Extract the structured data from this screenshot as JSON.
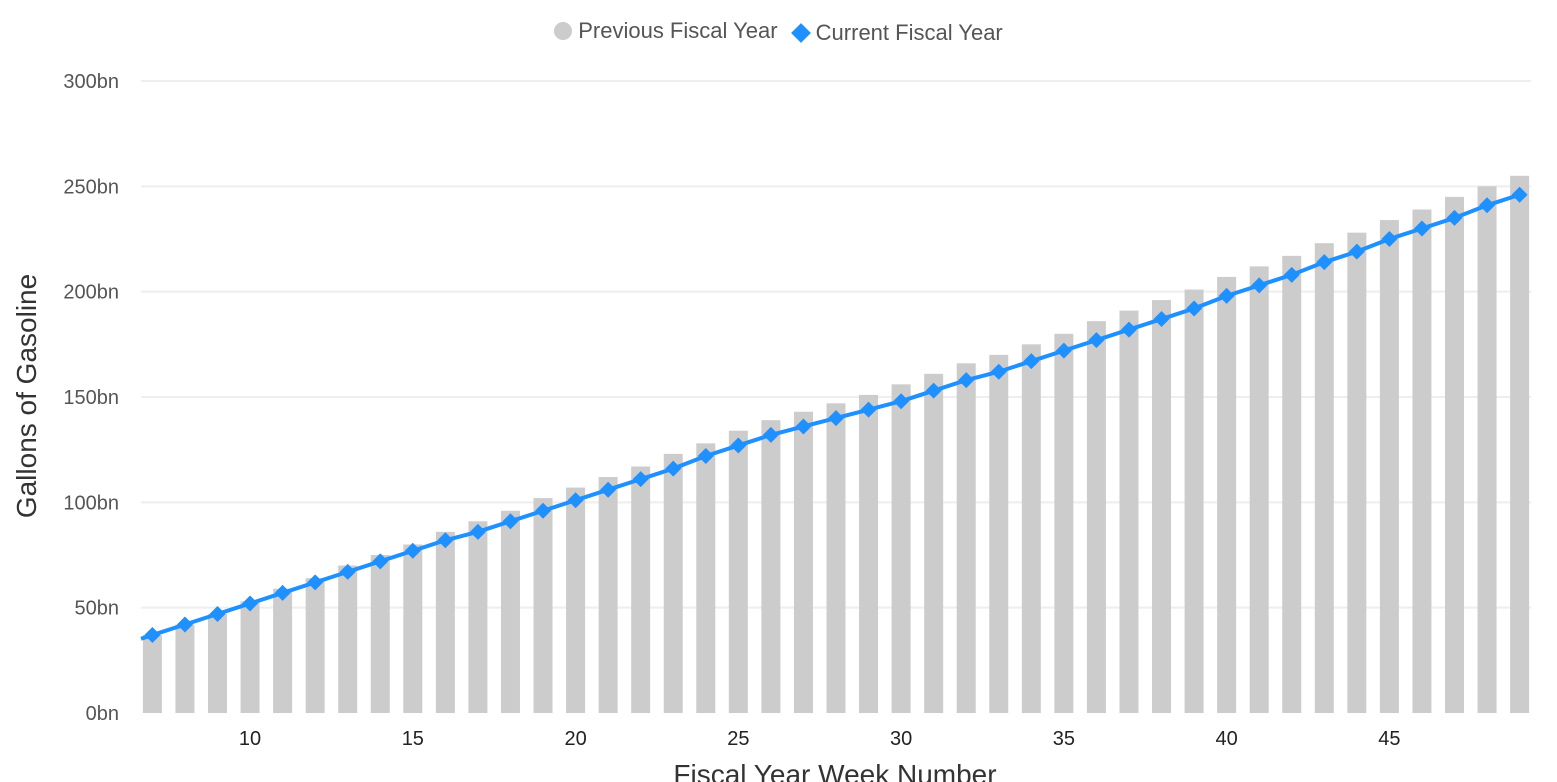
{
  "chart_data": {
    "type": "bar+line",
    "xlabel": "Fiscal Year Week Number",
    "ylabel": "Gallons of Gasoline",
    "x": [
      7,
      8,
      9,
      10,
      11,
      12,
      13,
      14,
      15,
      16,
      17,
      18,
      19,
      20,
      21,
      22,
      23,
      24,
      25,
      26,
      27,
      28,
      29,
      30,
      31,
      32,
      33,
      34,
      35,
      36,
      37,
      38,
      39,
      40,
      41,
      42,
      43,
      44,
      45,
      46,
      47,
      48,
      49
    ],
    "x_ticks": [
      10,
      15,
      20,
      25,
      30,
      35,
      40,
      45
    ],
    "xlim": [
      6.65,
      49.35
    ],
    "ylim": [
      0,
      300
    ],
    "y_ticks": [
      0,
      50,
      100,
      150,
      200,
      250,
      300
    ],
    "y_tick_labels": [
      "0bn",
      "50bn",
      "100bn",
      "150bn",
      "200bn",
      "250bn",
      "300bn"
    ],
    "grid": true,
    "legend_position": "top-center",
    "series": [
      {
        "name": "Previous Fiscal Year",
        "type": "bar",
        "color": "#cccccc",
        "values": [
          37,
          42,
          47,
          53,
          59,
          64,
          70,
          75,
          80,
          86,
          91,
          96,
          102,
          107,
          112,
          117,
          123,
          128,
          134,
          139,
          143,
          147,
          151,
          156,
          161,
          166,
          170,
          175,
          180,
          186,
          191,
          196,
          201,
          207,
          212,
          217,
          223,
          228,
          234,
          239,
          245,
          250,
          255
        ]
      },
      {
        "name": "Current Fiscal Year",
        "type": "line",
        "color": "#1e90ff",
        "values": [
          37,
          42,
          47,
          52,
          57,
          62,
          67,
          72,
          77,
          82,
          86,
          91,
          96,
          101,
          106,
          111,
          116,
          122,
          127,
          132,
          136,
          140,
          144,
          148,
          153,
          158,
          162,
          167,
          172,
          177,
          182,
          187,
          192,
          198,
          203,
          208,
          214,
          219,
          225,
          230,
          235,
          241,
          246
        ]
      }
    ]
  }
}
